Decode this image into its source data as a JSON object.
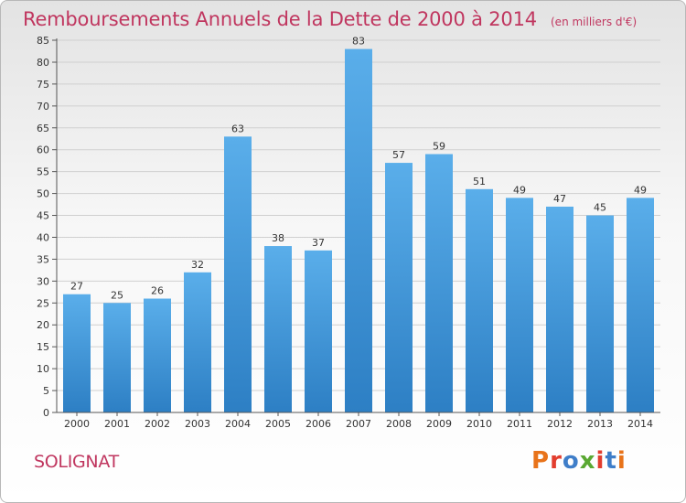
{
  "header": {
    "title": "Remboursements Annuels de la Dette de 2000 à 2014",
    "subtitle": "(en milliers d'€)"
  },
  "footer": {
    "location": "SOLIGNAT",
    "brand": "Proxiti",
    "brand_colors": [
      "#e8731a",
      "#e23d2e",
      "#3f7ec9",
      "#5aa832",
      "#e23d2e",
      "#3f7ec9",
      "#e8731a"
    ]
  },
  "colors": {
    "title": "#c0365f",
    "bar_top": "#5aaeea",
    "bar_bottom": "#2d7fc4",
    "grid": "#d0d0d0",
    "axis": "#555555"
  },
  "chart_data": {
    "type": "bar",
    "title": "Remboursements Annuels de la Dette de 2000 à 2014",
    "xlabel": "",
    "ylabel": "",
    "categories": [
      "2000",
      "2001",
      "2002",
      "2003",
      "2004",
      "2005",
      "2006",
      "2007",
      "2008",
      "2009",
      "2010",
      "2011",
      "2012",
      "2013",
      "2014"
    ],
    "values": [
      27,
      25,
      26,
      32,
      63,
      38,
      37,
      83,
      57,
      59,
      51,
      49,
      47,
      45,
      49
    ],
    "data_labels": [
      "27",
      "25",
      "26",
      "32",
      "63",
      "38",
      "37",
      "83",
      "57",
      "59",
      "51",
      "49",
      "47",
      "45",
      "49"
    ],
    "ylim": [
      0,
      85
    ],
    "yticks": [
      "0",
      "5",
      "10",
      "15",
      "20",
      "25",
      "30",
      "35",
      "40",
      "45",
      "50",
      "55",
      "60",
      "65",
      "70",
      "75",
      "80",
      "85"
    ],
    "grid": true,
    "legend": "none"
  }
}
